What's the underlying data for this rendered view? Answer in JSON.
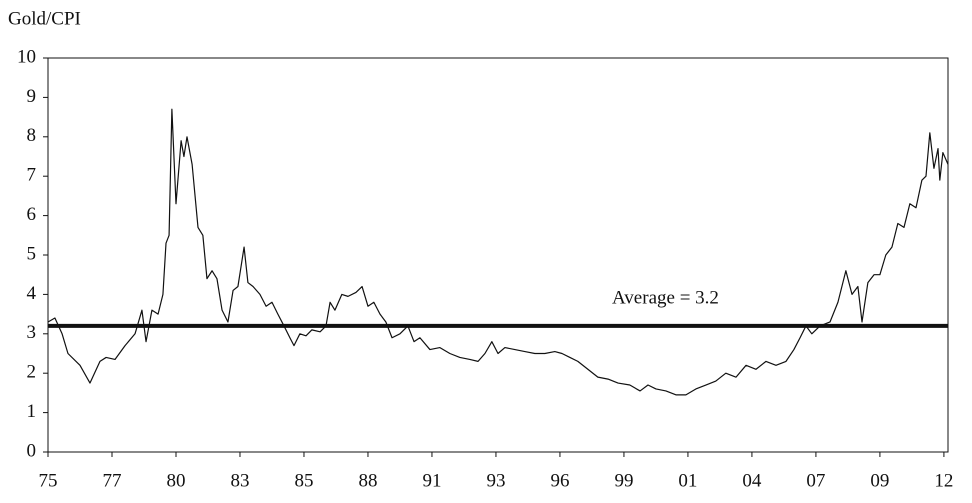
{
  "chart_data": {
    "type": "line",
    "y_axis_label": "Gold/CPI",
    "xlim": [
      1975,
      2010.16
    ],
    "ylim": [
      0,
      10
    ],
    "yticks": [
      0,
      1,
      2,
      3,
      4,
      5,
      6,
      7,
      8,
      9,
      10
    ],
    "xticks": [
      {
        "value": 1975,
        "label": "75"
      },
      {
        "value": 1977.5,
        "label": "77"
      },
      {
        "value": 1980,
        "label": "80"
      },
      {
        "value": 1982.5,
        "label": "83"
      },
      {
        "value": 1985,
        "label": "85"
      },
      {
        "value": 1987.5,
        "label": "88"
      },
      {
        "value": 1990,
        "label": "91"
      },
      {
        "value": 1992.5,
        "label": "93"
      },
      {
        "value": 1995,
        "label": "96"
      },
      {
        "value": 1997.5,
        "label": "99"
      },
      {
        "value": 2000,
        "label": "01"
      },
      {
        "value": 2002.5,
        "label": "04"
      },
      {
        "value": 2005,
        "label": "07"
      },
      {
        "value": 2007.5,
        "label": "09"
      },
      {
        "value": 2010,
        "label": "12"
      }
    ],
    "reference_line": {
      "value": 3.2,
      "label": "Average = 3.2",
      "color": "#111111"
    },
    "series": [
      {
        "name": "Gold/CPI",
        "color": "#111111",
        "x": [
          1975.0,
          1975.27,
          1975.55,
          1975.78,
          1976.25,
          1976.64,
          1977.03,
          1977.27,
          1977.62,
          1978.01,
          1978.4,
          1978.67,
          1978.83,
          1979.06,
          1979.3,
          1979.49,
          1979.61,
          1979.73,
          1979.84,
          1980.0,
          1980.2,
          1980.31,
          1980.43,
          1980.63,
          1980.86,
          1981.05,
          1981.21,
          1981.41,
          1981.6,
          1981.8,
          1982.03,
          1982.23,
          1982.42,
          1982.66,
          1982.81,
          1983.01,
          1983.28,
          1983.52,
          1983.75,
          1983.98,
          1984.22,
          1984.45,
          1984.61,
          1984.84,
          1985.08,
          1985.31,
          1985.63,
          1985.86,
          1986.02,
          1986.21,
          1986.48,
          1986.72,
          1987.03,
          1987.27,
          1987.5,
          1987.73,
          1987.97,
          1988.2,
          1988.44,
          1988.75,
          1989.06,
          1989.3,
          1989.53,
          1989.92,
          1990.31,
          1990.7,
          1991.09,
          1991.48,
          1991.8,
          1992.07,
          1992.34,
          1992.58,
          1992.85,
          1993.24,
          1993.63,
          1994.02,
          1994.41,
          1994.8,
          1995.08,
          1995.39,
          1995.7,
          1996.09,
          1996.48,
          1996.88,
          1997.27,
          1997.73,
          1998.13,
          1998.44,
          1998.75,
          1999.14,
          1999.53,
          1999.92,
          2000.31,
          2000.7,
          2001.09,
          2001.48,
          2001.88,
          2002.27,
          2002.66,
          2003.05,
          2003.44,
          2003.83,
          2004.14,
          2004.38,
          2004.61,
          2004.84,
          2005.16,
          2005.55,
          2005.86,
          2006.17,
          2006.41,
          2006.64,
          2006.8,
          2007.03,
          2007.27,
          2007.5,
          2007.73,
          2007.97,
          2008.2,
          2008.44,
          2008.67,
          2008.91,
          2009.14,
          2009.3,
          2009.45,
          2009.61,
          2009.77,
          2009.84,
          2009.96,
          2010.16
        ],
        "values": [
          3.3,
          3.4,
          3.0,
          2.5,
          2.2,
          1.75,
          2.3,
          2.4,
          2.35,
          2.7,
          3.0,
          3.6,
          2.8,
          3.6,
          3.5,
          4.0,
          5.3,
          5.5,
          8.7,
          6.3,
          7.9,
          7.5,
          8.0,
          7.3,
          5.7,
          5.5,
          4.4,
          4.6,
          4.4,
          3.6,
          3.3,
          4.1,
          4.2,
          5.2,
          4.3,
          4.2,
          4.0,
          3.7,
          3.8,
          3.5,
          3.2,
          2.9,
          2.7,
          3.0,
          2.95,
          3.1,
          3.05,
          3.2,
          3.8,
          3.6,
          4.0,
          3.95,
          4.05,
          4.2,
          3.7,
          3.8,
          3.5,
          3.3,
          2.9,
          3.0,
          3.2,
          2.8,
          2.9,
          2.6,
          2.65,
          2.5,
          2.4,
          2.35,
          2.3,
          2.5,
          2.8,
          2.5,
          2.65,
          2.6,
          2.55,
          2.5,
          2.5,
          2.55,
          2.5,
          2.4,
          2.3,
          2.1,
          1.9,
          1.85,
          1.75,
          1.7,
          1.55,
          1.7,
          1.6,
          1.55,
          1.45,
          1.45,
          1.6,
          1.7,
          1.8,
          2.0,
          1.9,
          2.2,
          2.1,
          2.3,
          2.2,
          2.3,
          2.6,
          2.9,
          3.2,
          3.0,
          3.2,
          3.3,
          3.8,
          4.6,
          4.0,
          4.2,
          3.3,
          4.3,
          4.5,
          4.5,
          5.0,
          5.2,
          5.8,
          5.7,
          6.3,
          6.2,
          6.9,
          7.0,
          8.1,
          7.2,
          7.7,
          6.9,
          7.6,
          7.3
        ]
      }
    ]
  }
}
